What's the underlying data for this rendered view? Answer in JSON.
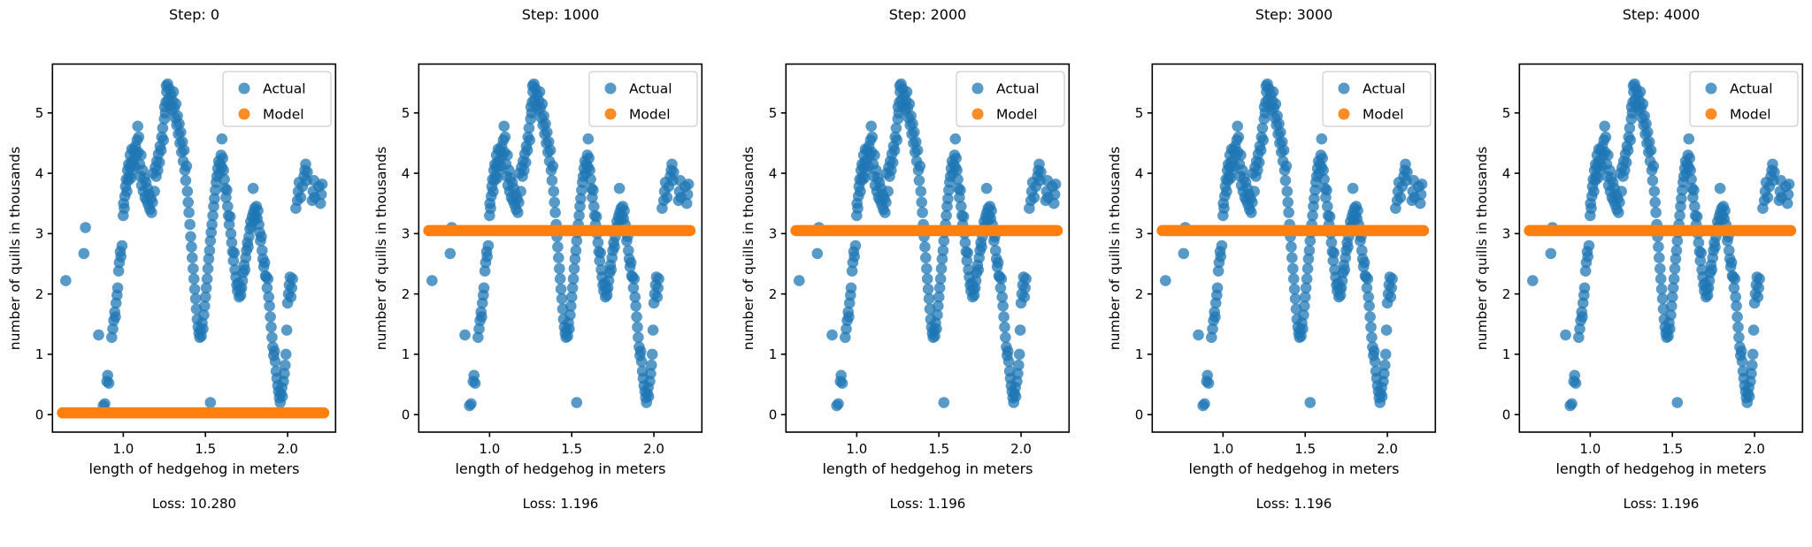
{
  "chart_data": {
    "type": "scatter",
    "xlabel": "length of hedgehog in meters",
    "ylabel": "number of quills in thousands",
    "xlim": [
      0.569,
      2.292
    ],
    "ylim": [
      -0.29,
      5.81
    ],
    "x_ticks": [
      1.0,
      1.5,
      2.0
    ],
    "x_tick_labels": [
      "1.0",
      "1.5",
      "2.0"
    ],
    "y_ticks": [
      0,
      1,
      2,
      3,
      4,
      5
    ],
    "y_tick_labels": [
      "0",
      "1",
      "2",
      "3",
      "4",
      "5"
    ],
    "grid": false,
    "legend": {
      "position": "upper right",
      "actual_label": "Actual",
      "model_label": "Model"
    },
    "colors": {
      "actual": "#1f77b4",
      "model": "#ff7f0e",
      "marker_alpha": 0.75
    },
    "panels": [
      {
        "title": "Step: 0",
        "step": 0,
        "loss": 10.28,
        "loss_label": "Loss: 10.280",
        "model_y": 0.03
      },
      {
        "title": "Step: 1000",
        "step": 1000,
        "loss": 1.196,
        "loss_label": "Loss: 1.196",
        "model_y": 3.05
      },
      {
        "title": "Step: 2000",
        "step": 2000,
        "loss": 1.196,
        "loss_label": "Loss: 1.196",
        "model_y": 3.05
      },
      {
        "title": "Step: 3000",
        "step": 3000,
        "loss": 1.196,
        "loss_label": "Loss: 1.196",
        "model_y": 3.05
      },
      {
        "title": "Step: 4000",
        "step": 4000,
        "loss": 1.196,
        "loss_label": "Loss: 1.196",
        "model_y": 3.05
      }
    ],
    "model_x_range": [
      0.63,
      2.22
    ],
    "actual_points": [
      [
        0.65,
        2.22
      ],
      [
        0.76,
        2.67
      ],
      [
        0.77,
        3.1
      ],
      [
        0.85,
        1.32
      ],
      [
        0.878,
        0.15
      ],
      [
        0.888,
        0.18
      ],
      [
        0.9,
        0.55
      ],
      [
        0.905,
        0.65
      ],
      [
        0.912,
        0.52
      ],
      [
        0.93,
        1.28
      ],
      [
        0.936,
        1.42
      ],
      [
        0.942,
        1.56
      ],
      [
        0.948,
        1.7
      ],
      [
        0.952,
        1.62
      ],
      [
        0.956,
        1.85
      ],
      [
        0.962,
        1.98
      ],
      [
        0.966,
        2.1
      ],
      [
        0.972,
        2.38
      ],
      [
        0.976,
        2.52
      ],
      [
        0.982,
        2.7
      ],
      [
        0.986,
        2.62
      ],
      [
        0.992,
        2.8
      ],
      [
        1.0,
        3.3
      ],
      [
        1.002,
        3.5
      ],
      [
        1.006,
        3.42
      ],
      [
        1.01,
        3.62
      ],
      [
        1.014,
        3.78
      ],
      [
        1.018,
        3.9
      ],
      [
        1.022,
        3.7
      ],
      [
        1.026,
        4.05
      ],
      [
        1.03,
        3.88
      ],
      [
        1.032,
        4.15
      ],
      [
        1.036,
        3.95
      ],
      [
        1.04,
        4.1
      ],
      [
        1.042,
        4.3
      ],
      [
        1.046,
        3.92
      ],
      [
        1.05,
        4.18
      ],
      [
        1.052,
        4.4
      ],
      [
        1.056,
        4.05
      ],
      [
        1.06,
        4.22
      ],
      [
        1.064,
        4.38
      ],
      [
        1.07,
        4.12
      ],
      [
        1.074,
        4.45
      ],
      [
        1.08,
        4.3
      ],
      [
        1.084,
        4.55
      ],
      [
        1.088,
        4.78
      ],
      [
        1.09,
        4.35
      ],
      [
        1.094,
        4.6
      ],
      [
        1.1,
        4.15
      ],
      [
        1.104,
        3.95
      ],
      [
        1.108,
        4.3
      ],
      [
        1.112,
        3.8
      ],
      [
        1.118,
        4.05
      ],
      [
        1.122,
        3.7
      ],
      [
        1.128,
        3.92
      ],
      [
        1.132,
        3.6
      ],
      [
        1.138,
        3.85
      ],
      [
        1.142,
        3.55
      ],
      [
        1.148,
        3.75
      ],
      [
        1.152,
        3.48
      ],
      [
        1.158,
        3.65
      ],
      [
        1.162,
        3.4
      ],
      [
        1.168,
        3.58
      ],
      [
        1.172,
        3.35
      ],
      [
        1.178,
        3.52
      ],
      [
        1.182,
        4.0
      ],
      [
        1.19,
        3.7
      ],
      [
        1.194,
        4.1
      ],
      [
        1.2,
        3.95
      ],
      [
        1.204,
        4.2
      ],
      [
        1.21,
        4.05
      ],
      [
        1.214,
        4.32
      ],
      [
        1.22,
        4.18
      ],
      [
        1.224,
        4.45
      ],
      [
        1.23,
        4.38
      ],
      [
        1.234,
        4.6
      ],
      [
        1.24,
        4.75
      ],
      [
        1.244,
        4.55
      ],
      [
        1.25,
        4.9
      ],
      [
        1.252,
        5.1
      ],
      [
        1.256,
        5.0
      ],
      [
        1.26,
        5.18
      ],
      [
        1.262,
        5.45
      ],
      [
        1.264,
        5.35
      ],
      [
        1.27,
        5.48
      ],
      [
        1.274,
        5.22
      ],
      [
        1.28,
        5.4
      ],
      [
        1.284,
        5.12
      ],
      [
        1.29,
        5.3
      ],
      [
        1.294,
        5.05
      ],
      [
        1.3,
        5.2
      ],
      [
        1.305,
        5.35
      ],
      [
        1.31,
        5.08
      ],
      [
        1.315,
        4.92
      ],
      [
        1.32,
        5.15
      ],
      [
        1.325,
        4.8
      ],
      [
        1.33,
        4.95
      ],
      [
        1.335,
        4.65
      ],
      [
        1.34,
        4.82
      ],
      [
        1.345,
        4.5
      ],
      [
        1.35,
        4.68
      ],
      [
        1.355,
        4.35
      ],
      [
        1.36,
        4.52
      ],
      [
        1.365,
        4.2
      ],
      [
        1.37,
        4.38
      ],
      [
        1.375,
        4.05
      ],
      [
        1.38,
        3.88
      ],
      [
        1.385,
        4.12
      ],
      [
        1.39,
        3.7
      ],
      [
        1.395,
        3.52
      ],
      [
        1.4,
        3.35
      ],
      [
        1.405,
        3.15
      ],
      [
        1.41,
        2.95
      ],
      [
        1.415,
        2.78
      ],
      [
        1.42,
        2.6
      ],
      [
        1.425,
        2.42
      ],
      [
        1.43,
        2.25
      ],
      [
        1.435,
        2.08
      ],
      [
        1.44,
        1.92
      ],
      [
        1.445,
        1.75
      ],
      [
        1.45,
        1.58
      ],
      [
        1.455,
        1.45
      ],
      [
        1.46,
        1.35
      ],
      [
        1.465,
        1.28
      ],
      [
        1.47,
        1.4
      ],
      [
        1.475,
        1.3
      ],
      [
        1.48,
        1.52
      ],
      [
        1.485,
        1.42
      ],
      [
        1.49,
        1.65
      ],
      [
        1.495,
        1.8
      ],
      [
        1.5,
        1.95
      ],
      [
        1.505,
        2.1
      ],
      [
        1.51,
        2.25
      ],
      [
        1.515,
        2.42
      ],
      [
        1.52,
        2.58
      ],
      [
        1.525,
        2.72
      ],
      [
        1.53,
        2.88
      ],
      [
        1.53,
        0.2
      ],
      [
        1.535,
        3.02
      ],
      [
        1.54,
        3.15
      ],
      [
        1.545,
        3.3
      ],
      [
        1.55,
        3.45
      ],
      [
        1.555,
        3.58
      ],
      [
        1.56,
        3.72
      ],
      [
        1.565,
        3.85
      ],
      [
        1.57,
        3.95
      ],
      [
        1.575,
        4.08
      ],
      [
        1.58,
        4.2
      ],
      [
        1.585,
        4.0
      ],
      [
        1.59,
        4.15
      ],
      [
        1.595,
        4.3
      ],
      [
        1.6,
        4.57
      ],
      [
        1.6,
        4.1
      ],
      [
        1.605,
        4.25
      ],
      [
        1.61,
        4.05
      ],
      [
        1.615,
        3.9
      ],
      [
        1.62,
        3.75
      ],
      [
        1.625,
        3.6
      ],
      [
        1.63,
        3.72
      ],
      [
        1.635,
        3.45
      ],
      [
        1.64,
        3.3
      ],
      [
        1.645,
        3.15
      ],
      [
        1.65,
        3.28
      ],
      [
        1.655,
        3.0
      ],
      [
        1.66,
        2.85
      ],
      [
        1.665,
        2.7
      ],
      [
        1.67,
        2.55
      ],
      [
        1.675,
        2.68
      ],
      [
        1.68,
        2.4
      ],
      [
        1.685,
        2.28
      ],
      [
        1.69,
        2.15
      ],
      [
        1.695,
        2.05
      ],
      [
        1.7,
        2.18
      ],
      [
        1.705,
        1.95
      ],
      [
        1.71,
        2.08
      ],
      [
        1.715,
        1.98
      ],
      [
        1.72,
        2.1
      ],
      [
        1.725,
        2.22
      ],
      [
        1.73,
        2.35
      ],
      [
        1.735,
        2.48
      ],
      [
        1.74,
        2.4
      ],
      [
        1.745,
        2.6
      ],
      [
        1.75,
        2.72
      ],
      [
        1.755,
        2.85
      ],
      [
        1.76,
        2.78
      ],
      [
        1.765,
        2.95
      ],
      [
        1.77,
        3.08
      ],
      [
        1.775,
        3.2
      ],
      [
        1.78,
        3.12
      ],
      [
        1.785,
        3.28
      ],
      [
        1.79,
        3.75
      ],
      [
        1.792,
        3.35
      ],
      [
        1.796,
        3.22
      ],
      [
        1.8,
        3.42
      ],
      [
        1.805,
        3.3
      ],
      [
        1.81,
        3.45
      ],
      [
        1.815,
        3.25
      ],
      [
        1.82,
        3.38
      ],
      [
        1.825,
        3.15
      ],
      [
        1.83,
        3.02
      ],
      [
        1.835,
        2.88
      ],
      [
        1.84,
        2.95
      ],
      [
        1.845,
        2.72
      ],
      [
        1.85,
        2.58
      ],
      [
        1.855,
        2.45
      ],
      [
        1.86,
        2.52
      ],
      [
        1.865,
        2.3
      ],
      [
        1.87,
        2.28
      ],
      [
        1.875,
        2.1
      ],
      [
        1.88,
        2.25
      ],
      [
        1.885,
        1.95
      ],
      [
        1.89,
        1.8
      ],
      [
        1.895,
        1.62
      ],
      [
        1.9,
        1.45
      ],
      [
        1.905,
        1.28
      ],
      [
        1.91,
        1.12
      ],
      [
        1.915,
        0.98
      ],
      [
        1.92,
        1.05
      ],
      [
        1.925,
        0.88
      ],
      [
        1.93,
        0.72
      ],
      [
        1.935,
        0.6
      ],
      [
        1.94,
        0.48
      ],
      [
        1.945,
        0.38
      ],
      [
        1.95,
        0.28
      ],
      [
        1.955,
        0.2
      ],
      [
        1.96,
        0.35
      ],
      [
        1.965,
        0.45
      ],
      [
        1.968,
        0.3
      ],
      [
        1.975,
        0.55
      ],
      [
        1.98,
        0.68
      ],
      [
        1.985,
        0.82
      ],
      [
        1.99,
        1.0
      ],
      [
        1.995,
        1.4
      ],
      [
        2.0,
        1.85
      ],
      [
        2.005,
        2.0
      ],
      [
        2.01,
        2.15
      ],
      [
        2.015,
        2.28
      ],
      [
        2.02,
        1.95
      ],
      [
        2.025,
        2.1
      ],
      [
        2.03,
        2.25
      ],
      [
        2.05,
        3.42
      ],
      [
        2.06,
        3.55
      ],
      [
        2.065,
        3.7
      ],
      [
        2.07,
        3.85
      ],
      [
        2.08,
        3.6
      ],
      [
        2.09,
        3.78
      ],
      [
        2.1,
        3.95
      ],
      [
        2.105,
        4.05
      ],
      [
        2.11,
        4.15
      ],
      [
        2.115,
        3.88
      ],
      [
        2.12,
        4.02
      ],
      [
        2.15,
        3.55
      ],
      [
        2.155,
        3.7
      ],
      [
        2.16,
        3.88
      ],
      [
        2.165,
        3.6
      ],
      [
        2.19,
        3.78
      ],
      [
        2.2,
        3.5
      ],
      [
        2.205,
        3.65
      ],
      [
        2.21,
        3.82
      ]
    ]
  }
}
